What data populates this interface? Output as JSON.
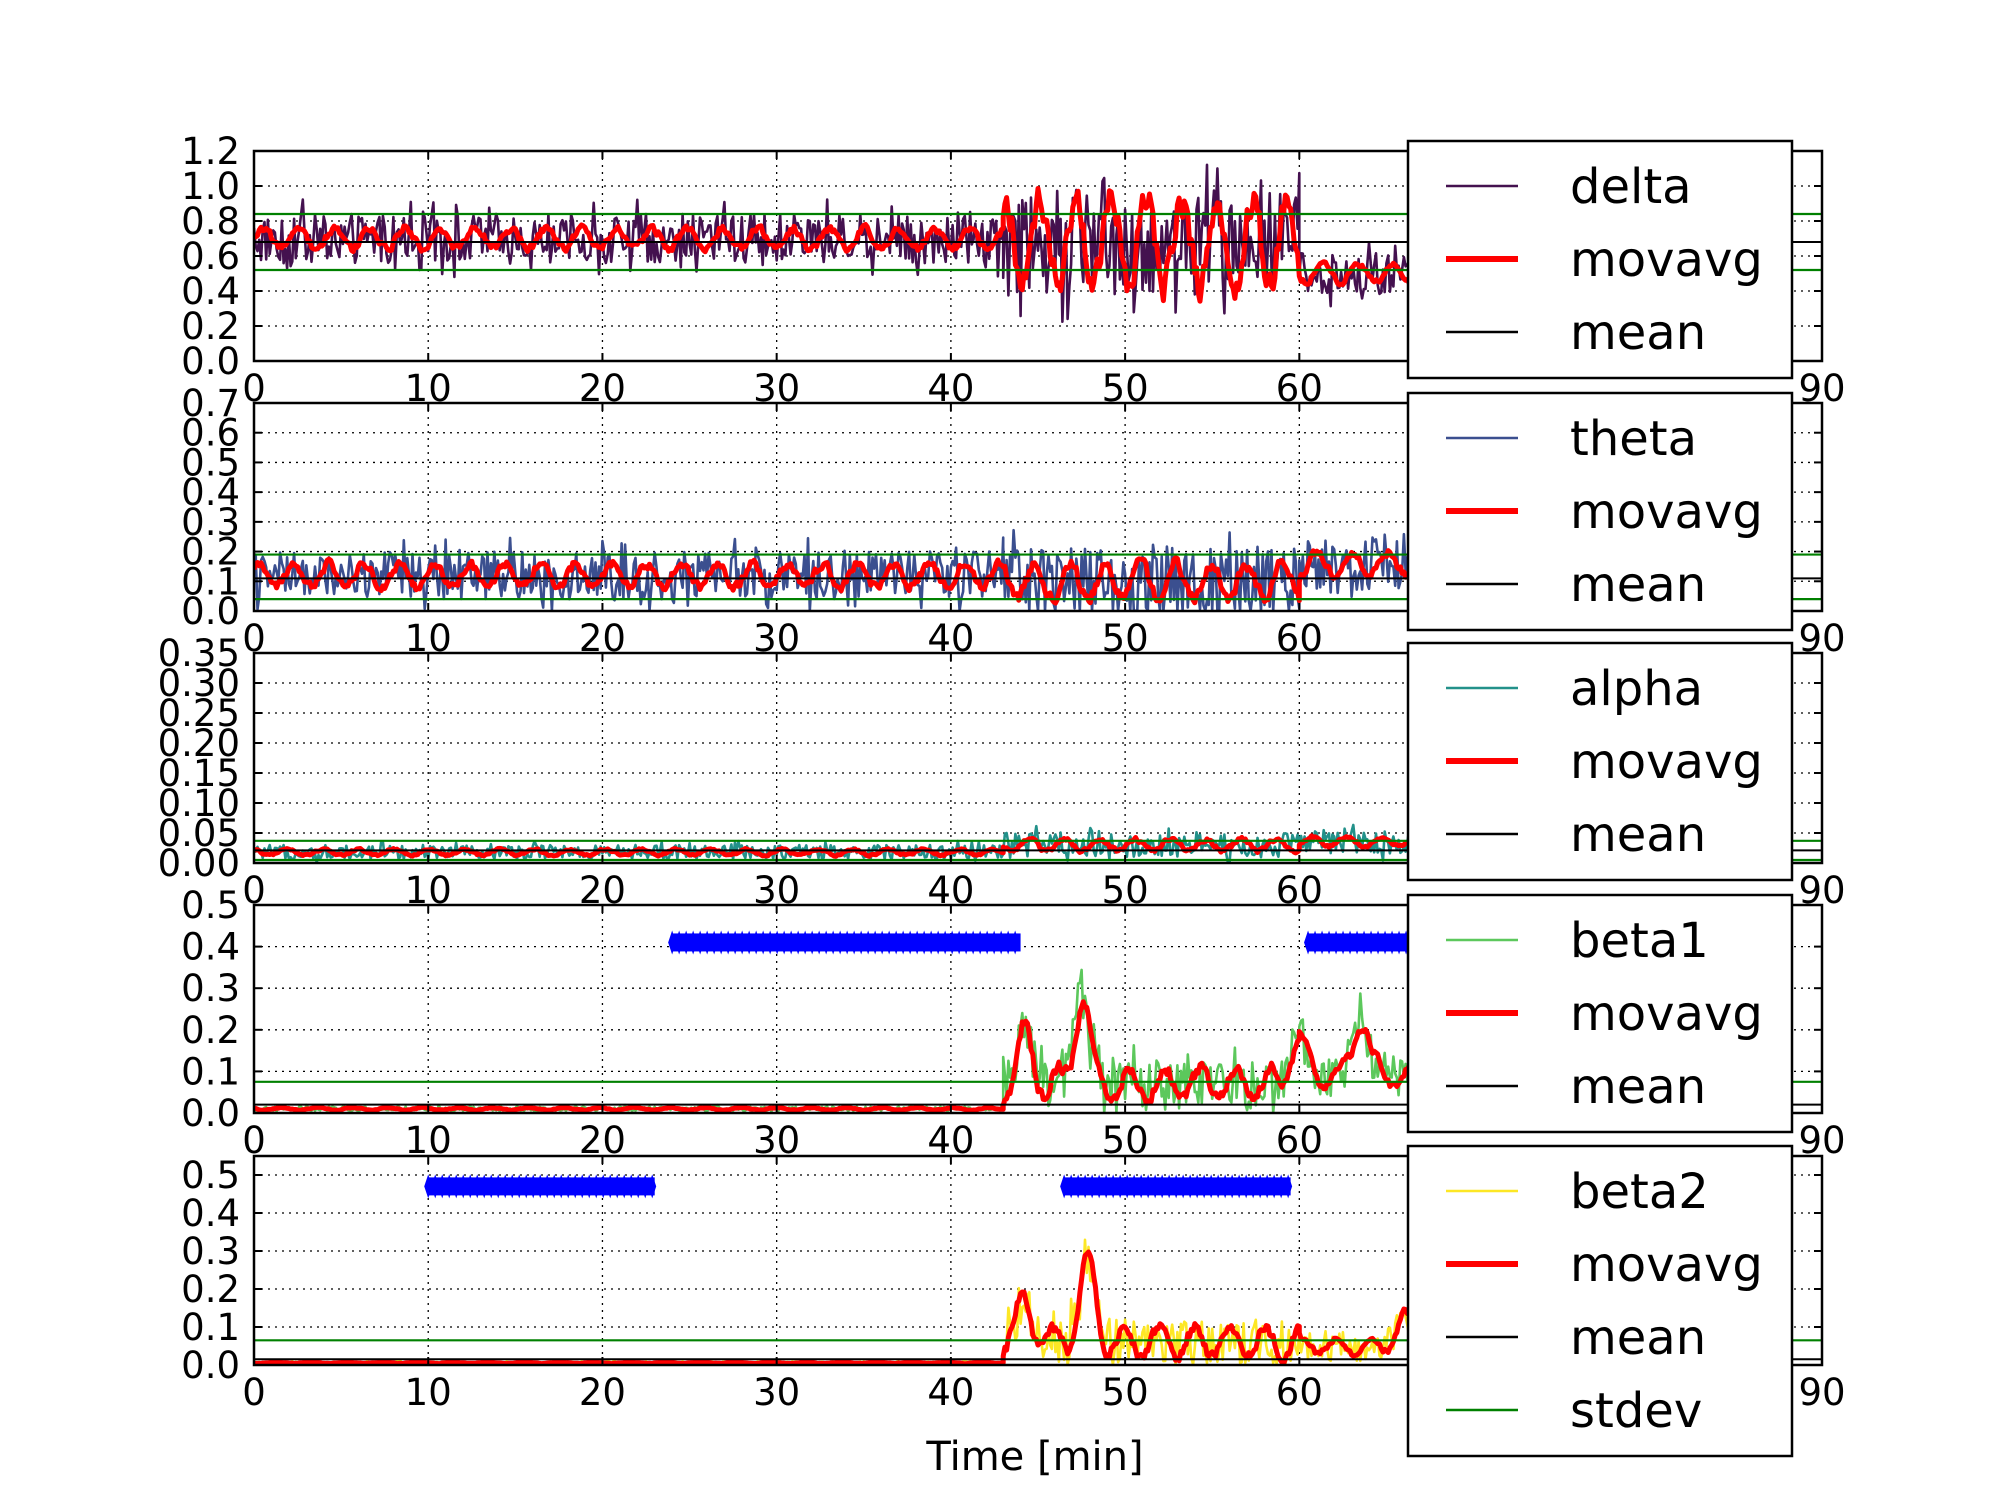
{
  "chart_data": {
    "type": "line",
    "xlabel": "Time [min]",
    "xlim": [
      0,
      90
    ],
    "xticks": [
      0,
      10,
      20,
      30,
      40,
      50,
      60,
      90
    ],
    "grid": true,
    "legend_position": "right, overlapping plot area",
    "colors": {
      "delta": "#44114f",
      "theta": "#3b4f8f",
      "alpha": "#23918a",
      "beta1": "#5cc85c",
      "beta2": "#fde725",
      "movavg": "#ff0000",
      "mean": "#000000",
      "stdev": "#008000",
      "marker": "#0000ff"
    },
    "subplots": [
      {
        "band": "delta",
        "ylim": [
          0,
          1.2
        ],
        "yticks": [
          "0.0",
          "0.2",
          "0.4",
          "0.6",
          "0.8",
          "1.0",
          "1.2"
        ],
        "mean": 0.68,
        "stdev_lines": [
          0.52,
          0.84
        ],
        "legend": [
          "delta",
          "movavg",
          "mean"
        ],
        "segments": [
          {
            "x": [
              0,
              43
            ],
            "base": 0.7,
            "noise": 0.14,
            "mavg_noise": 0.06
          },
          {
            "x": [
              43,
              60
            ],
            "base": 0.68,
            "noise": 0.3,
            "mavg_noise": 0.25
          },
          {
            "x": [
              60,
              68
            ],
            "base": 0.5,
            "noise": 0.12,
            "mavg_noise": 0.05
          }
        ],
        "markers": []
      },
      {
        "band": "theta",
        "ylim": [
          0,
          0.7
        ],
        "yticks": [
          "0.0",
          "0.1",
          "0.2",
          "0.3",
          "0.4",
          "0.5",
          "0.6",
          "0.7"
        ],
        "mean": 0.11,
        "stdev_lines": [
          0.04,
          0.19
        ],
        "legend": [
          "theta",
          "movavg",
          "mean"
        ],
        "segments": [
          {
            "x": [
              0,
              43
            ],
            "base": 0.12,
            "noise": 0.08,
            "mavg_noise": 0.04
          },
          {
            "x": [
              43,
              60
            ],
            "base": 0.1,
            "noise": 0.12,
            "mavg_noise": 0.06
          },
          {
            "x": [
              60,
              68
            ],
            "base": 0.16,
            "noise": 0.1,
            "mavg_noise": 0.04
          }
        ],
        "markers": []
      },
      {
        "band": "alpha",
        "ylim": [
          0,
          0.35
        ],
        "yticks": [
          "0.00",
          "0.05",
          "0.10",
          "0.15",
          "0.20",
          "0.25",
          "0.30",
          "0.35"
        ],
        "mean": 0.021,
        "stdev_lines": [
          0.005,
          0.037
        ],
        "legend": [
          "alpha",
          "movavg",
          "mean"
        ],
        "segments": [
          {
            "x": [
              0,
              43
            ],
            "base": 0.018,
            "noise": 0.012,
            "mavg_noise": 0.005
          },
          {
            "x": [
              43,
              60
            ],
            "base": 0.03,
            "noise": 0.02,
            "mavg_noise": 0.01
          },
          {
            "x": [
              60,
              68
            ],
            "base": 0.036,
            "noise": 0.02,
            "mavg_noise": 0.008
          }
        ],
        "markers": []
      },
      {
        "band": "beta1",
        "ylim": [
          0,
          0.5
        ],
        "yticks": [
          "0.0",
          "0.1",
          "0.2",
          "0.3",
          "0.4",
          "0.5"
        ],
        "mean": 0.02,
        "stdev_lines": [
          0.075
        ],
        "legend": [
          "beta1",
          "movavg",
          "mean"
        ],
        "segments": [
          {
            "x": [
              0,
              43
            ],
            "base": 0.01,
            "noise": 0.006,
            "mavg_noise": 0.003
          },
          {
            "x": [
              43,
              60
            ],
            "base": 0.07,
            "noise": 0.06,
            "mavg_noise": 0.04
          },
          {
            "x": [
              60,
              68
            ],
            "base": 0.09,
            "noise": 0.05,
            "mavg_noise": 0.03
          }
        ],
        "peaks": [
          [
            47.5,
            0.22
          ],
          [
            63.5,
            0.15
          ],
          [
            44.2,
            0.12
          ],
          [
            59.8,
            0.11
          ]
        ],
        "markers": [
          {
            "x_range": [
              24,
              44
            ],
            "y": 0.41
          },
          {
            "x_range": [
              60.5,
              68
            ],
            "y": 0.41
          }
        ]
      },
      {
        "band": "beta2",
        "ylim": [
          0,
          0.55
        ],
        "yticks": [
          "0.0",
          "0.1",
          "0.2",
          "0.3",
          "0.4",
          "0.5"
        ],
        "mean": 0.015,
        "stdev_lines": [
          0.065
        ],
        "legend": [
          "beta2",
          "movavg",
          "mean",
          "stdev"
        ],
        "segments": [
          {
            "x": [
              0,
              43
            ],
            "base": 0.006,
            "noise": 0.004,
            "mavg_noise": 0.002
          },
          {
            "x": [
              43,
              60
            ],
            "base": 0.06,
            "noise": 0.06,
            "mavg_noise": 0.04
          },
          {
            "x": [
              60,
              68
            ],
            "base": 0.05,
            "noise": 0.04,
            "mavg_noise": 0.02
          }
        ],
        "peaks": [
          [
            47.8,
            0.22
          ],
          [
            44.2,
            0.12
          ],
          [
            66,
            0.08
          ]
        ],
        "markers": [
          {
            "x_range": [
              10,
              23
            ],
            "y": 0.47
          },
          {
            "x_range": [
              46.5,
              59.5
            ],
            "y": 0.47
          }
        ]
      }
    ]
  }
}
